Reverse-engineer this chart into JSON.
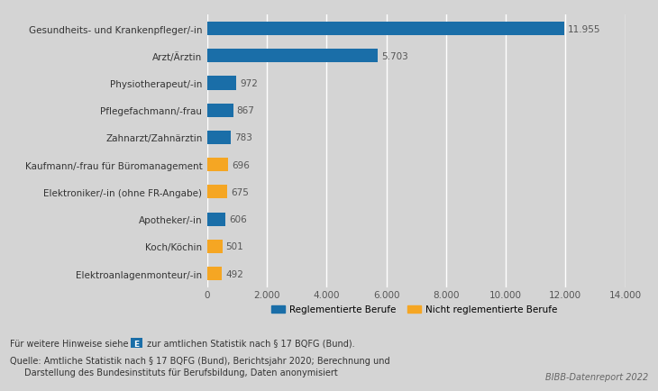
{
  "categories": [
    "Elektroanlagenmonteur/-in",
    "Koch/Köchin",
    "Apotheker/-in",
    "Elektroniker/-in (ohne FR-Angabe)",
    "Kaufmann/-frau für Büromanagement",
    "Zahnarzt/Zahnärztin",
    "Pflegefachmann/-frau",
    "Physiotherapeut/-in",
    "Arzt/Ärztin",
    "Gesundheits- und Krankenpfleger/-in"
  ],
  "values": [
    492,
    501,
    606,
    675,
    696,
    783,
    867,
    972,
    5703,
    11955
  ],
  "colors": [
    "#f5a623",
    "#f5a623",
    "#1a6ea8",
    "#f5a623",
    "#f5a623",
    "#1a6ea8",
    "#1a6ea8",
    "#1a6ea8",
    "#1a6ea8",
    "#1a6ea8"
  ],
  "labels": [
    "492",
    "501",
    "606",
    "675",
    "696",
    "783",
    "867",
    "972",
    "5.703",
    "11.955"
  ],
  "bar_color_blue": "#1a6ea8",
  "bar_color_orange": "#f5a623",
  "background_color": "#d4d4d4",
  "plot_bg_color": "#d4d4d4",
  "xlim": [
    0,
    14000
  ],
  "xticks": [
    0,
    2000,
    4000,
    6000,
    8000,
    10000,
    12000,
    14000
  ],
  "xtick_labels": [
    "0",
    "2.000",
    "4.000",
    "6.000",
    "8.000",
    "10.000",
    "12.000",
    "14.000"
  ],
  "legend_blue": "Reglementierte Berufe",
  "legend_orange": "Nicht reglementierte Berufe",
  "footnote1": "Für weitere Hinweise siehe",
  "footnote1b": " zur amtlichen Statistik nach § 17 BQFG (Bund).",
  "footnote2": "Quelle: Amtliche Statistik nach § 17 BQFG (Bund), Berichtsjahr 2020; Berechnung und",
  "footnote3": "Darstellung des Bundesinstituts für Berufsbildung, Daten anonymisiert",
  "watermark": "BIBB-Datenreport 2022",
  "label_fontsize": 7.5,
  "tick_fontsize": 7.5,
  "bar_height": 0.5
}
